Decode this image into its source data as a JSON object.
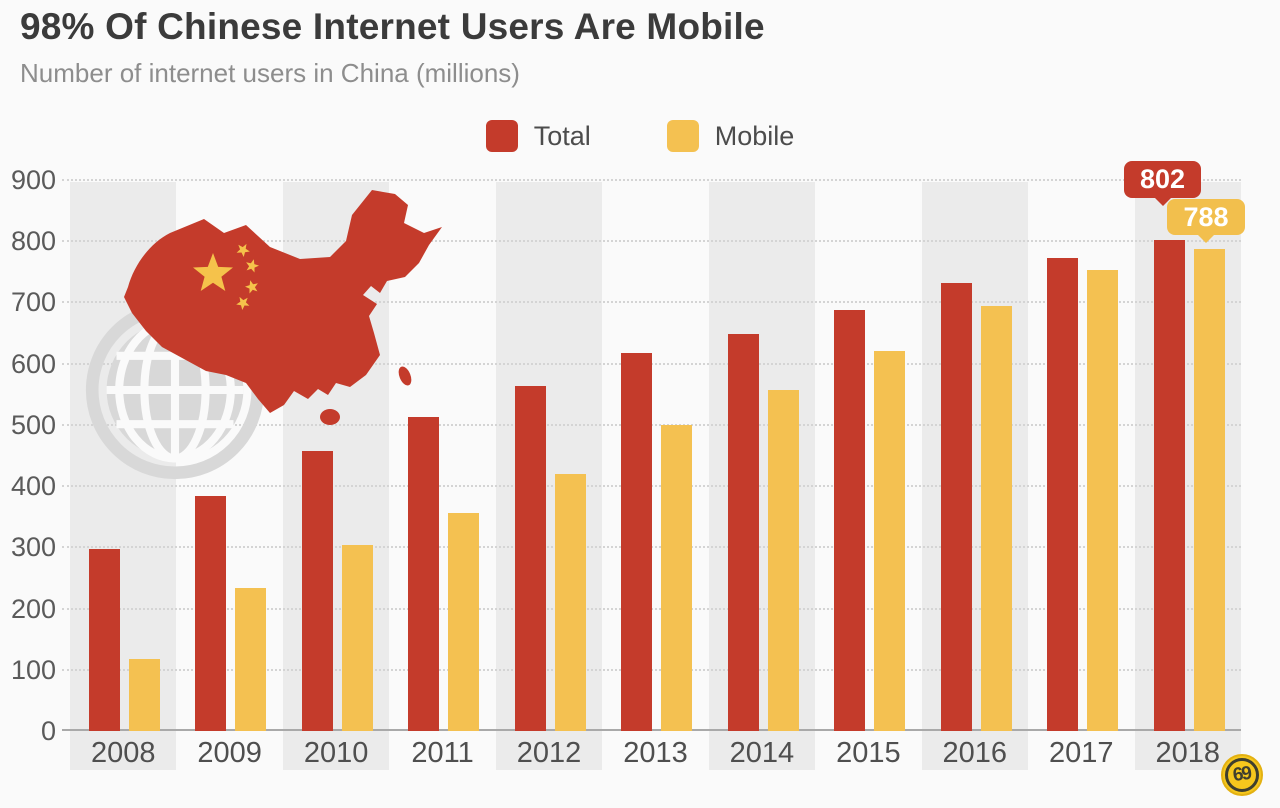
{
  "header": {
    "title": "98% Of Chinese Internet Users Are Mobile",
    "subtitle": "Number of internet users in China (millions)"
  },
  "chart_data": {
    "type": "bar",
    "title": "98% Of Chinese Internet Users Are Mobile",
    "subtitle": "Number of internet users in China (millions)",
    "categories": [
      "2008",
      "2009",
      "2010",
      "2011",
      "2012",
      "2013",
      "2014",
      "2015",
      "2016",
      "2017",
      "2018"
    ],
    "series": [
      {
        "name": "Total",
        "color": "#c43b2b",
        "values": [
          298,
          384,
          457,
          513,
          564,
          618,
          649,
          688,
          731,
          772,
          802
        ]
      },
      {
        "name": "Mobile",
        "color": "#f4c151",
        "values": [
          118,
          233,
          303,
          356,
          420,
          500,
          557,
          620,
          695,
          753,
          788
        ]
      }
    ],
    "xlabel": "",
    "ylabel": "",
    "ylim": [
      0,
      900
    ],
    "yticks": [
      0,
      100,
      200,
      300,
      400,
      500,
      600,
      700,
      800,
      900
    ],
    "grid": "horizontal-dotted",
    "legend_position": "top-center",
    "callouts": [
      {
        "series": "Total",
        "category": "2018",
        "value": "802",
        "color": "#c43b2b"
      },
      {
        "series": "Mobile",
        "category": "2018",
        "value": "788",
        "color": "#f2bf4d"
      }
    ]
  },
  "decorations": {
    "globe_icon": "wireframe-globe",
    "china_map": "china-silhouette-with-flag-stars",
    "watermark": "69"
  },
  "colors": {
    "background": "#fafafa",
    "stripe": "#ebebeb",
    "grid": "#d4d4d4",
    "axis": "#a9a9a9",
    "title": "#3b3b3b",
    "subtitle": "#8d8d8d",
    "map_red": "#c43b2b",
    "star_yellow": "#f5c24b",
    "globe_gray": "#d8d8d8"
  }
}
